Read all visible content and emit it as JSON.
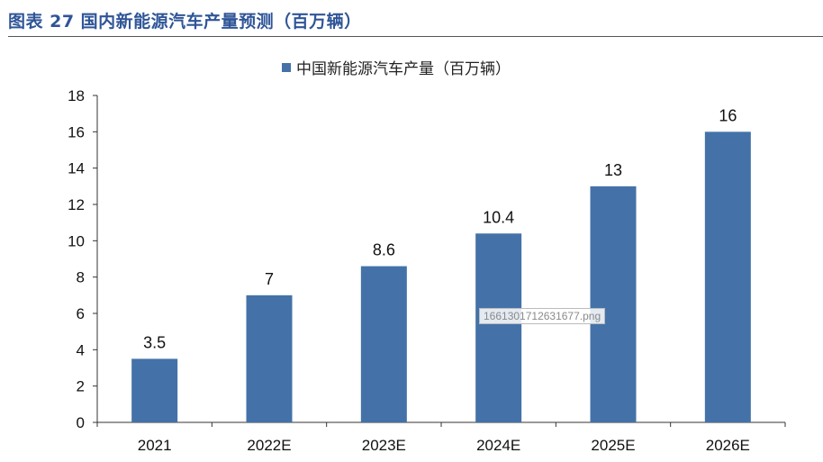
{
  "figure_title": "图表 27 国内新能源汽车产量预测（百万辆）",
  "watermark": "1661301712631677.png",
  "chart_data": {
    "type": "bar",
    "categories": [
      "2021",
      "2022E",
      "2023E",
      "2024E",
      "2025E",
      "2026E"
    ],
    "series": [
      {
        "name": "中国新能源汽车产量（百万辆）",
        "values": [
          3.5,
          7,
          8.6,
          10.4,
          13,
          16
        ],
        "color": "#4472a8"
      }
    ],
    "data_labels": [
      "3.5",
      "7",
      "8.6",
      "10.4",
      "13",
      "16"
    ],
    "ylim": [
      0,
      18
    ],
    "yticks": [
      0,
      2,
      4,
      6,
      8,
      10,
      12,
      14,
      16,
      18
    ],
    "grid": false,
    "legend_position": "top-center"
  }
}
